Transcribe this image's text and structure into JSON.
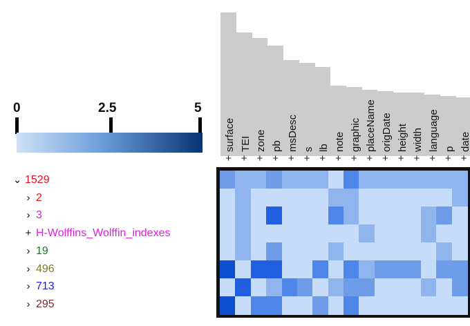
{
  "legend": {
    "ticks": [
      "0",
      "2.5",
      "5"
    ],
    "color_start": "#cfe1f6",
    "color_end": "#083374"
  },
  "tree": [
    {
      "symbol": "v",
      "label": "1529",
      "color": "#e8131b",
      "level": 0
    },
    {
      "symbol": ">",
      "label": "2",
      "color": "#e8131b",
      "level": 1
    },
    {
      "symbol": ">",
      "label": "3",
      "color": "#e020e0",
      "level": 1
    },
    {
      "symbol": "+",
      "label": "H-Wolffins_Wolffin_indexes",
      "color": "#e020e0",
      "level": 1
    },
    {
      "symbol": ">",
      "label": "19",
      "color": "#1a7a1a",
      "level": 1
    },
    {
      "symbol": ">",
      "label": "496",
      "color": "#7a7a2a",
      "level": 1
    },
    {
      "symbol": ">",
      "label": "713",
      "color": "#1a1ae0",
      "level": 1
    },
    {
      "symbol": ">",
      "label": "295",
      "color": "#7a2a2a",
      "level": 1
    }
  ],
  "columns": [
    {
      "label": "surface",
      "count_level": 1.0
    },
    {
      "label": "TEI",
      "count_level": 0.86
    },
    {
      "label": "zone",
      "count_level": 0.82
    },
    {
      "label": "pb",
      "count_level": 0.77
    },
    {
      "label": "msDesc",
      "count_level": 0.67
    },
    {
      "label": "s",
      "count_level": 0.65
    },
    {
      "label": "lb",
      "count_level": 0.62
    },
    {
      "label": "note",
      "count_level": 0.49
    },
    {
      "label": "graphic",
      "count_level": 0.48
    },
    {
      "label": "placeName",
      "count_level": 0.46
    },
    {
      "label": "origDate",
      "count_level": 0.45
    },
    {
      "label": "height",
      "count_level": 0.44
    },
    {
      "label": "width",
      "count_level": 0.44
    },
    {
      "label": "language",
      "count_level": 0.43
    },
    {
      "label": "p",
      "count_level": 0.42
    },
    {
      "label": "date",
      "count_level": 0.41
    }
  ],
  "expand_symbol": "+",
  "matrix": [
    [
      3,
      2,
      2,
      3,
      2,
      2,
      2,
      1,
      4,
      2,
      2,
      2,
      2,
      2,
      2,
      2
    ],
    [
      1,
      2,
      1,
      1,
      1,
      1,
      1,
      2,
      2,
      1,
      1,
      1,
      1,
      1,
      1,
      2
    ],
    [
      1,
      2,
      1,
      5,
      1,
      1,
      1,
      4,
      2,
      1,
      1,
      1,
      1,
      2,
      3,
      1
    ],
    [
      1,
      2,
      1,
      1,
      1,
      1,
      1,
      1,
      1,
      2,
      1,
      1,
      1,
      2,
      1,
      1
    ],
    [
      1,
      2,
      1,
      3,
      1,
      1,
      1,
      2,
      1,
      1,
      1,
      1,
      1,
      1,
      2,
      1
    ],
    [
      6,
      1,
      5,
      5,
      1,
      1,
      4,
      1,
      4,
      2,
      3,
      3,
      3,
      1,
      3,
      3
    ],
    [
      1,
      5,
      1,
      2,
      4,
      3,
      1,
      2,
      3,
      3,
      1,
      1,
      1,
      2,
      1,
      3
    ],
    [
      6,
      1,
      4,
      4,
      1,
      1,
      3,
      1,
      4,
      1,
      1,
      1,
      1,
      1,
      1,
      1
    ]
  ],
  "palette": [
    "#cfe1f6",
    "#c6dcf8",
    "#8fb4ee",
    "#6f9ce8",
    "#4f86ea",
    "#1f5fe0",
    "#0d4fcf",
    "#0a3580"
  ]
}
